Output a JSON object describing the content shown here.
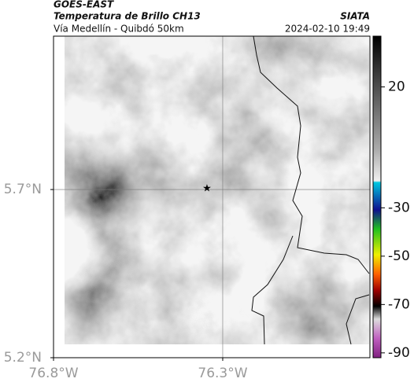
{
  "header": {
    "title": "GOES-EAST",
    "subtitle": "Temperatura de Brillo CH13",
    "route": "Vía Medellín - Quibdó 50km",
    "source": "SIATA",
    "timestamp": "2024-02-10 19:49"
  },
  "map": {
    "xlim": [
      -76.8,
      -75.865
    ],
    "ylim": [
      5.2,
      6.156
    ],
    "xticks": [
      {
        "value": -76.8,
        "label": "76.8°W"
      },
      {
        "value": -76.3,
        "label": "76.3°W"
      }
    ],
    "yticks": [
      {
        "value": 5.2,
        "label": "5.2°N"
      },
      {
        "value": 5.7,
        "label": "5.7°N"
      }
    ],
    "grid": true
  },
  "colorbar": {
    "lim": [
      -92,
      41
    ],
    "ticks": [
      20,
      -30,
      -50,
      -70,
      -90
    ]
  }
}
